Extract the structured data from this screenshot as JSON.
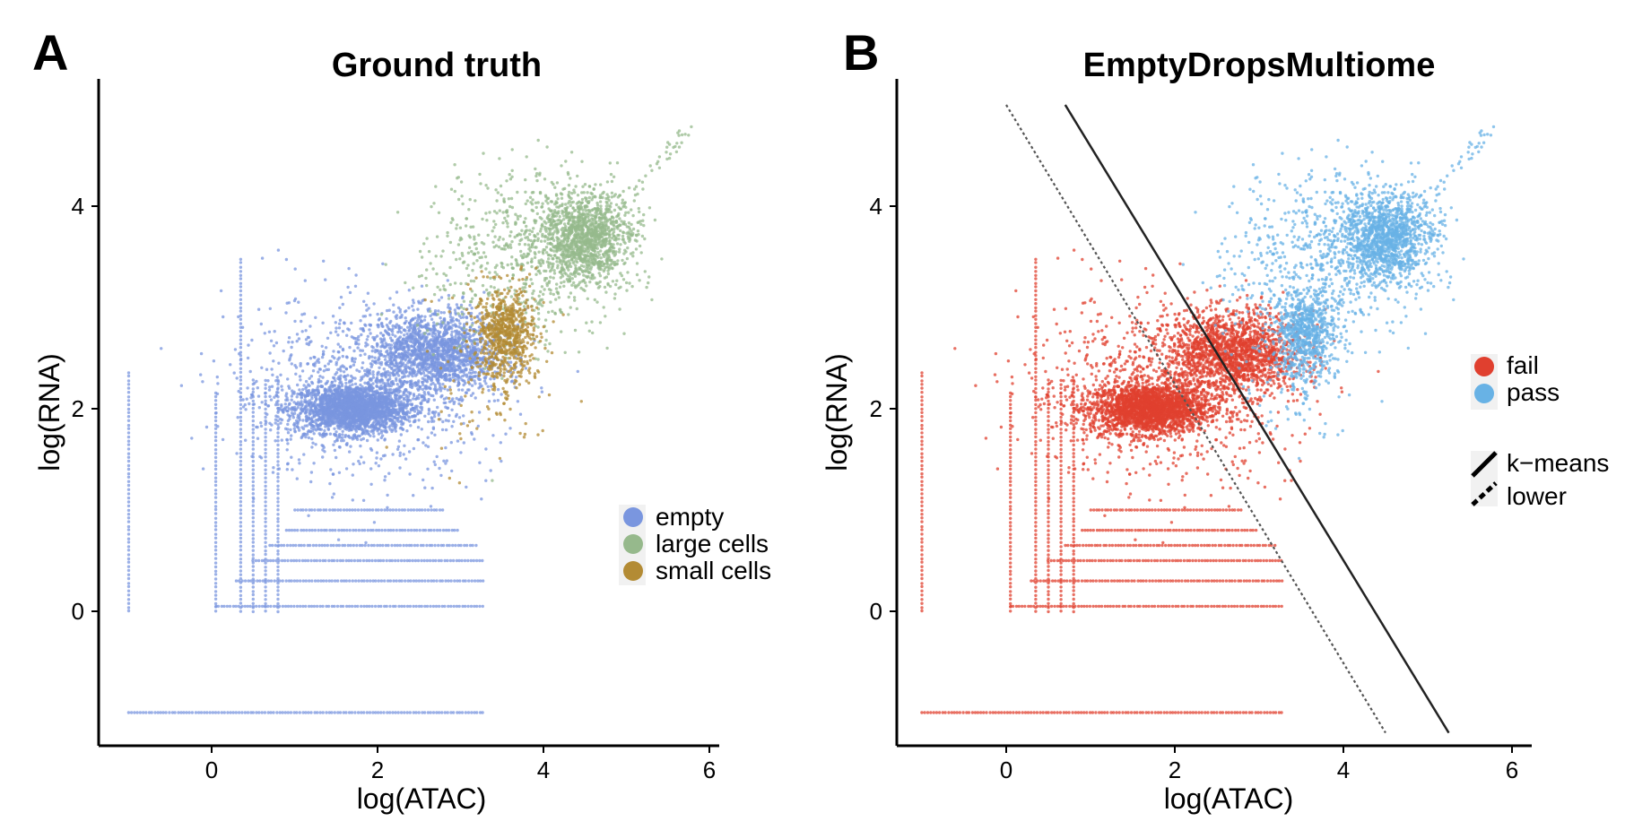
{
  "chart_data": [
    {
      "type": "scatter",
      "panel_label": "A",
      "title": "Ground truth",
      "xlabel": "log(ATAC)",
      "ylabel": "log(RNA)",
      "xlim": [
        -1.3,
        6.2
      ],
      "ylim": [
        -1.3,
        5.2
      ],
      "xticks": [
        0,
        2,
        4,
        6
      ],
      "yticks": [
        0,
        2,
        4
      ],
      "xtick_labels": [
        "0",
        "2",
        "4",
        "6"
      ],
      "ytick_labels": [
        "0",
        "2",
        "4"
      ],
      "grid": false,
      "legend_position": "right",
      "series": [
        {
          "name": "empty",
          "color": "#7a96df",
          "clusters": [
            {
              "cx": 1.7,
              "cy": 2.0,
              "sx": 0.35,
              "sy": 0.12,
              "n": 2200
            },
            {
              "cx": 2.7,
              "cy": 2.55,
              "sx": 0.4,
              "sy": 0.2,
              "n": 1600
            },
            {
              "cx": 1.8,
              "cy": 2.2,
              "sx": 0.8,
              "sy": 0.45,
              "n": 900
            }
          ],
          "grid_rows": [
            {
              "y": -1.0,
              "x": [
                -1.0,
                3.3
              ]
            },
            {
              "y": 0.05,
              "x": [
                0.05,
                3.3
              ]
            },
            {
              "y": 0.3,
              "x": [
                0.3,
                3.3
              ]
            },
            {
              "y": 0.5,
              "x": [
                0.5,
                3.3
              ]
            },
            {
              "y": 0.65,
              "x": [
                0.7,
                3.2
              ]
            },
            {
              "y": 0.8,
              "x": [
                0.9,
                3.0
              ]
            },
            {
              "y": 1.0,
              "x": [
                1.0,
                2.8
              ]
            }
          ],
          "grid_cols": [
            {
              "x": -1.0,
              "y": [
                0.0,
                2.4
              ]
            },
            {
              "x": 0.05,
              "y": [
                0.0,
                2.2
              ]
            },
            {
              "x": 0.35,
              "y": [
                0.0,
                3.5
              ]
            },
            {
              "x": 0.5,
              "y": [
                0.0,
                2.3
              ]
            },
            {
              "x": 0.65,
              "y": [
                0.0,
                2.3
              ]
            },
            {
              "x": 0.8,
              "y": [
                0.0,
                2.3
              ]
            }
          ]
        },
        {
          "name": "large cells",
          "color": "#96b98c",
          "clusters": [
            {
              "cx": 4.5,
              "cy": 3.7,
              "sx": 0.28,
              "sy": 0.22,
              "n": 1300
            },
            {
              "cx": 3.7,
              "cy": 3.45,
              "sx": 0.55,
              "sy": 0.45,
              "n": 600
            }
          ]
        },
        {
          "name": "small cells",
          "color": "#b38b34",
          "clusters": [
            {
              "cx": 3.55,
              "cy": 2.75,
              "sx": 0.18,
              "sy": 0.22,
              "n": 700
            },
            {
              "cx": 3.3,
              "cy": 2.3,
              "sx": 0.35,
              "sy": 0.4,
              "n": 120
            }
          ]
        }
      ]
    },
    {
      "type": "scatter",
      "panel_label": "B",
      "title": "EmptyDropsMultiome",
      "xlabel": "log(ATAC)",
      "ylabel": "log(RNA)",
      "xlim": [
        -1.3,
        6.2
      ],
      "ylim": [
        -1.3,
        5.2
      ],
      "xticks": [
        0,
        2,
        4,
        6
      ],
      "yticks": [
        0,
        2,
        4
      ],
      "xtick_labels": [
        "0",
        "2",
        "4",
        "6"
      ],
      "ytick_labels": [
        "0",
        "2",
        "4"
      ],
      "grid": false,
      "legend_position": "right",
      "series": [
        {
          "name": "fail",
          "color": "#e0402f"
        },
        {
          "name": "pass",
          "color": "#68b2e5"
        }
      ],
      "lines": [
        {
          "name": "k−means",
          "style": "solid",
          "points": [
            [
              0.7,
              5.0
            ],
            [
              5.25,
              -1.2
            ]
          ]
        },
        {
          "name": "lower",
          "style": "dotted",
          "points": [
            [
              0.0,
              5.0
            ],
            [
              4.5,
              -1.2
            ]
          ]
        }
      ]
    }
  ],
  "legend_a": {
    "items": [
      "empty",
      "large cells",
      "small cells"
    ]
  },
  "legend_b": {
    "class_items": [
      "fail",
      "pass"
    ],
    "line_items": [
      "k−means",
      "lower"
    ]
  }
}
